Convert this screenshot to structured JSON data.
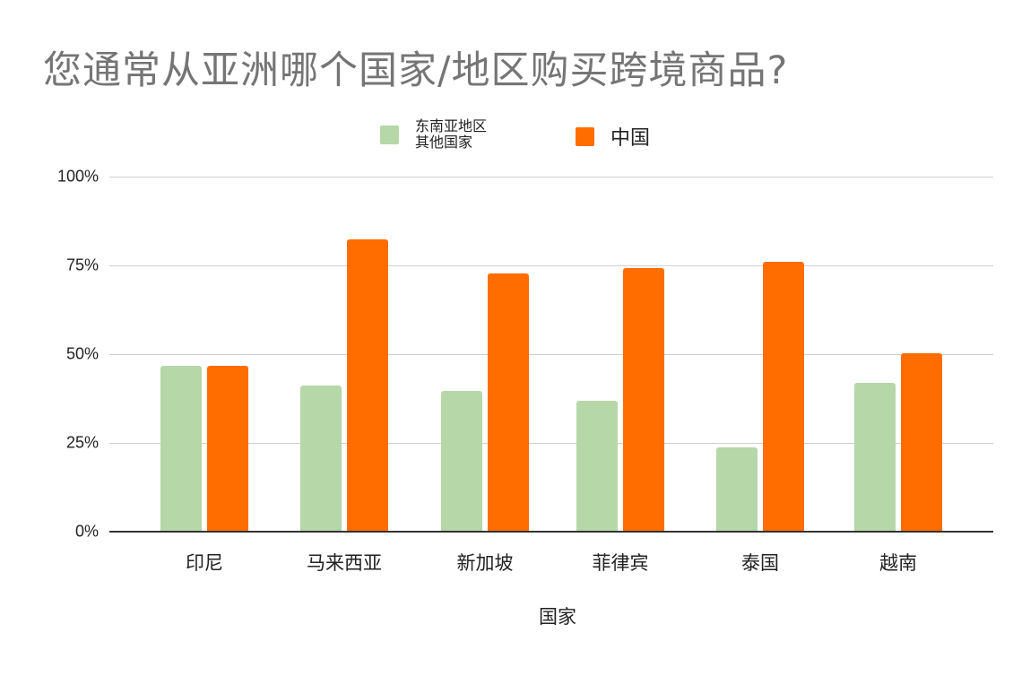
{
  "chart_data": {
    "type": "bar",
    "title": "您通常从亚洲哪个国家/地区购买跨境商品?",
    "xlabel": "国家",
    "ylabel": "",
    "ylim": [
      0,
      100
    ],
    "yticks": [
      "0%",
      "25%",
      "50%",
      "75%",
      "100%"
    ],
    "grid": true,
    "legend_position": "top",
    "categories": [
      "印尼",
      "马来西亚",
      "新加坡",
      "菲律宾",
      "泰国",
      "越南"
    ],
    "series": [
      {
        "name": "东南亚地区其他国家",
        "legend_lines": [
          "东南亚地区",
          "其他国家"
        ],
        "color": "#b6d7a8",
        "values": [
          46.7,
          41.2,
          39.6,
          36.9,
          23.7,
          41.9
        ]
      },
      {
        "name": "中国",
        "legend_lines": [
          "中国"
        ],
        "color": "#ff6d01",
        "values": [
          46.7,
          82.3,
          72.7,
          74.2,
          76.0,
          50.2
        ]
      }
    ]
  }
}
